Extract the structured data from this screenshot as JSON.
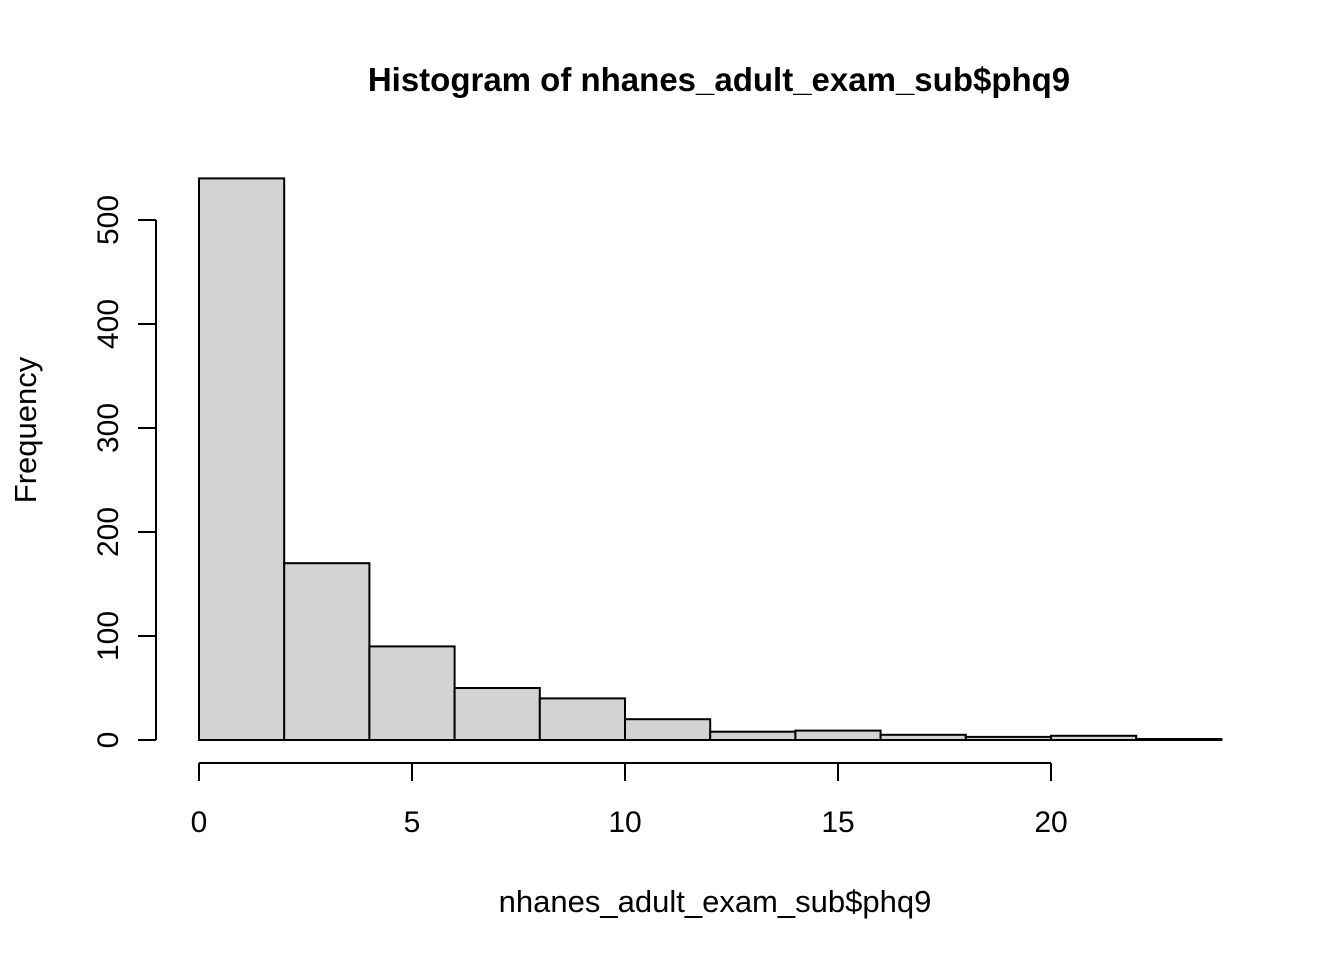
{
  "chart_data": {
    "type": "bar",
    "subtype": "histogram",
    "title": "Histogram of nhanes_adult_exam_sub$phq9",
    "xlabel": "nhanes_adult_exam_sub$phq9",
    "ylabel": "Frequency",
    "bin_edges": [
      0,
      2,
      4,
      6,
      8,
      10,
      12,
      14,
      16,
      18,
      20,
      22,
      24
    ],
    "counts": [
      540,
      170,
      90,
      50,
      40,
      20,
      8,
      9,
      5,
      3,
      4,
      1
    ],
    "x_ticks": [
      0,
      5,
      10,
      15,
      20
    ],
    "y_ticks": [
      0,
      100,
      200,
      300,
      400,
      500
    ],
    "xlim": [
      0,
      24
    ],
    "ylim": [
      0,
      500
    ],
    "bar_fill": "#d3d3d3",
    "bar_border": "#000000",
    "axis_color": "#000000",
    "background": "#ffffff",
    "grid": false,
    "legend": "none"
  }
}
